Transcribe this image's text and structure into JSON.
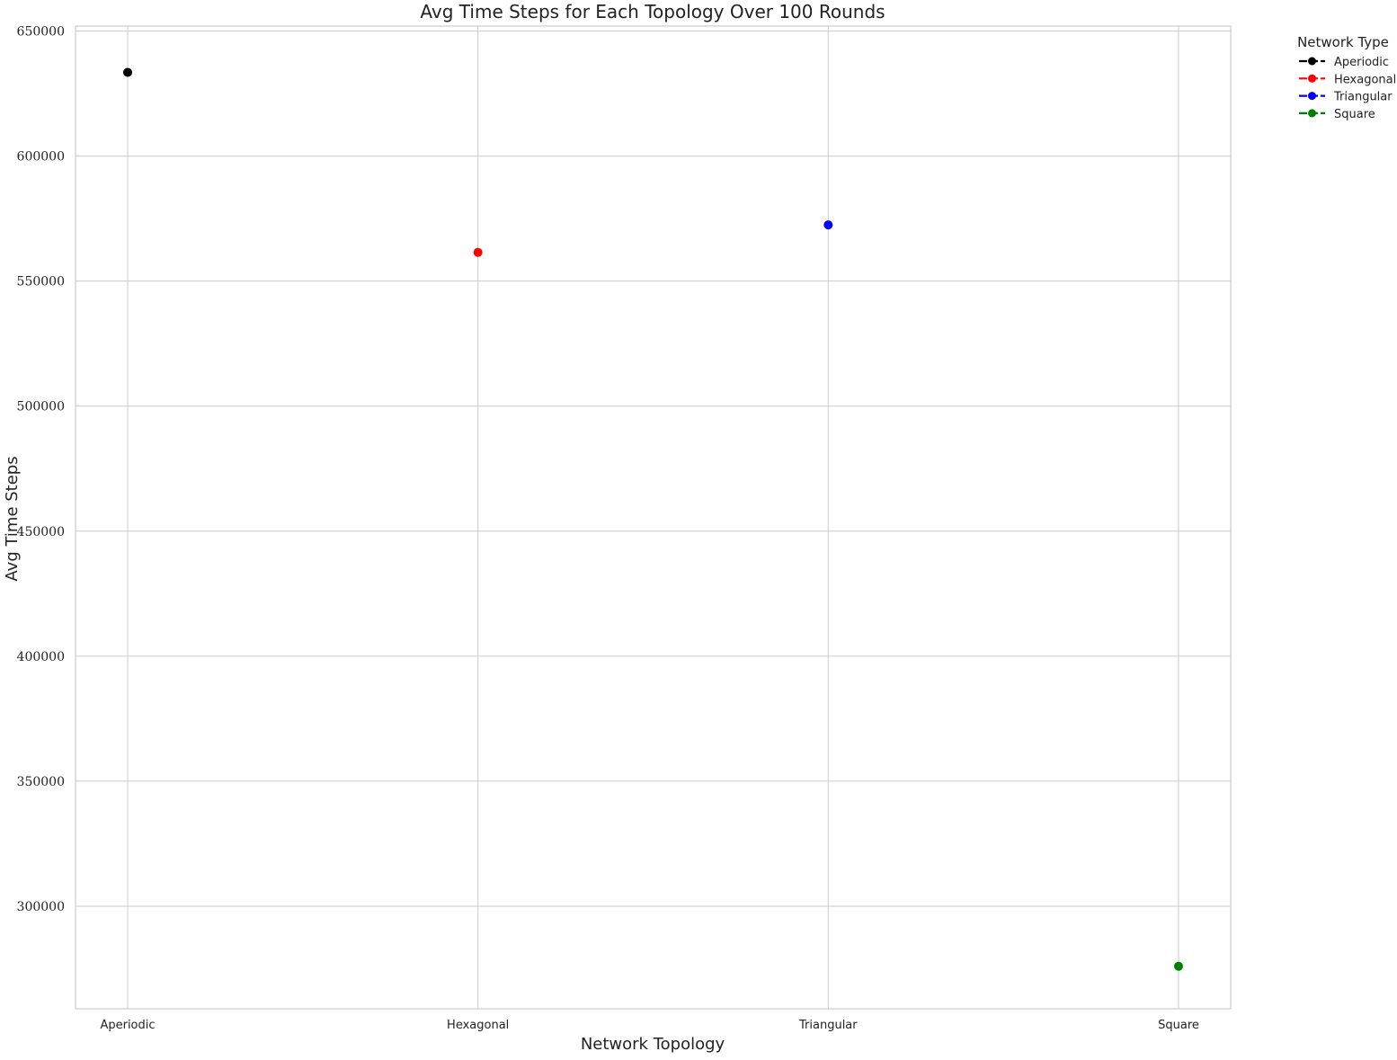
{
  "chart_data": {
    "type": "scatter",
    "title": "Avg Time Steps for Each Topology Over 100 Rounds",
    "xlabel": "Network Topology",
    "ylabel": "Avg Time Steps",
    "categories": [
      "Aperiodic",
      "Hexagonal",
      "Triangular",
      "Square"
    ],
    "ylim": [
      259000,
      652000
    ],
    "yticks": [
      300000,
      350000,
      400000,
      450000,
      500000,
      550000,
      600000,
      650000
    ],
    "yticks_labels": [
      "300000",
      "350000",
      "400000",
      "450000",
      "500000",
      "550000",
      "600000",
      "650000"
    ],
    "grid": true,
    "legend": {
      "title": "Network Type",
      "placement": "outside-top-right"
    },
    "series": [
      {
        "name": "Aperiodic",
        "category": "Aperiodic",
        "value": 633500,
        "color": "#000000"
      },
      {
        "name": "Hexagonal",
        "category": "Hexagonal",
        "value": 561500,
        "color": "#ff0000"
      },
      {
        "name": "Triangular",
        "category": "Triangular",
        "value": 572500,
        "color": "#0000ff"
      },
      {
        "name": "Square",
        "category": "Square",
        "value": 276000,
        "color": "#008000"
      }
    ]
  }
}
